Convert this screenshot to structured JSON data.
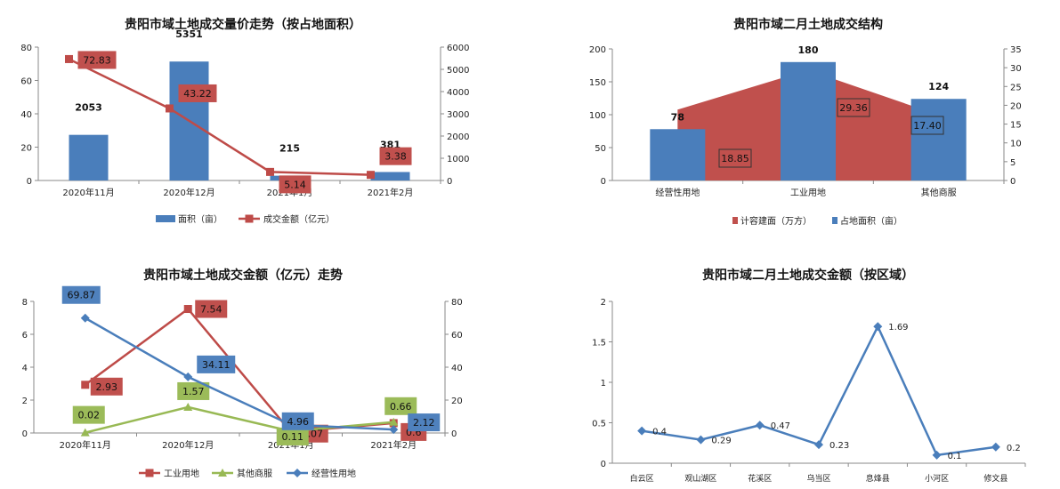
{
  "colors": {
    "blue": "#4a7ebb",
    "red": "#be4b48",
    "green": "#98b954",
    "area_red": "#c0504d",
    "box_blue": "#4f81bd",
    "box_red": "#c0504d",
    "box_green": "#9bbb59"
  },
  "chart_data": [
    {
      "type": "bar+line",
      "title": "贵阳市域土地成交量价走势（按占地面积）",
      "categories": [
        "2020年11月",
        "2020年12月",
        "2021年1月",
        "2021年2月"
      ],
      "series": [
        {
          "name": "面积（亩）",
          "kind": "bar",
          "axis": "right",
          "values": [
            2053,
            5351,
            215,
            381
          ]
        },
        {
          "name": "成交金额（亿元）",
          "kind": "line",
          "axis": "left",
          "values": [
            72.83,
            43.22,
            5.14,
            3.38
          ]
        }
      ],
      "y_left": {
        "ticks": [
          "0",
          "20",
          "40",
          "60",
          "80"
        ],
        "ylim": [
          0,
          80
        ]
      },
      "y_right": {
        "ticks": [
          "0",
          "1000",
          "2000",
          "3000",
          "4000",
          "5000",
          "6000"
        ],
        "ylim": [
          0,
          6000
        ]
      },
      "bar_labels": [
        "2053",
        "5351",
        "215",
        "381"
      ],
      "line_labels": [
        "72.83",
        "43.22",
        "5.14",
        "3.38"
      ],
      "legend": [
        "面积（亩）",
        "成交金额（亿元）"
      ]
    },
    {
      "type": "area+bar",
      "title": "贵阳市域二月土地成交结构",
      "categories": [
        "经营性用地",
        "工业用地",
        "其他商服"
      ],
      "series": [
        {
          "name": "计容建面（万方）",
          "kind": "area",
          "axis": "right",
          "values": [
            18.85,
            29.36,
            17.4
          ]
        },
        {
          "name": "占地面积（亩）",
          "kind": "bar",
          "axis": "left",
          "values": [
            78,
            180,
            124
          ]
        }
      ],
      "y_left": {
        "ticks": [
          "0",
          "50",
          "100",
          "150",
          "200"
        ],
        "ylim": [
          0,
          200
        ]
      },
      "y_right": {
        "ticks": [
          "0",
          "5",
          "10",
          "15",
          "20",
          "25",
          "30",
          "35"
        ],
        "ylim": [
          0,
          35
        ]
      },
      "bar_labels": [
        "78",
        "180",
        "124"
      ],
      "area_labels": [
        "18.85",
        "29.36",
        "17.40"
      ],
      "legend": [
        "计容建面（万方）",
        "占地面积（亩）"
      ]
    },
    {
      "type": "line",
      "title": "贵阳市域土地成交金额（亿元）走势",
      "categories": [
        "2020年11月",
        "2020年12月",
        "2021年1月",
        "2021年2月"
      ],
      "series": [
        {
          "name": "工业用地",
          "axis": "left",
          "values": [
            2.93,
            7.54,
            0.07,
            0.6
          ]
        },
        {
          "name": "其他商服",
          "axis": "left",
          "values": [
            0.02,
            1.57,
            0.11,
            0.66
          ]
        },
        {
          "name": "经营性用地",
          "axis": "right",
          "values": [
            69.87,
            34.11,
            4.96,
            2.12
          ]
        }
      ],
      "y_left": {
        "ticks": [
          "0",
          "2",
          "4",
          "6",
          "8"
        ],
        "ylim": [
          0,
          8
        ]
      },
      "y_right": {
        "ticks": [
          "0",
          "20",
          "40",
          "60",
          "80"
        ],
        "ylim": [
          0,
          80
        ]
      },
      "labels": {
        "工业用地": [
          "2.93",
          "7.54",
          "0.07",
          "0.6"
        ],
        "其他商服": [
          "0.02",
          "1.57",
          "0.11",
          "0.66"
        ],
        "经营性用地": [
          "69.87",
          "34.11",
          "4.96",
          "2.12"
        ]
      },
      "legend": [
        "工业用地",
        "其他商服",
        "经营性用地"
      ]
    },
    {
      "type": "line",
      "title": "贵阳市域二月土地成交金额（按区域）",
      "categories": [
        "白云区",
        "观山湖区",
        "花溪区",
        "乌当区",
        "息烽县",
        "小河区",
        "修文县"
      ],
      "series": [
        {
          "name": "",
          "values": [
            0.4,
            0.29,
            0.47,
            0.23,
            1.69,
            0.1,
            0.2
          ]
        }
      ],
      "y_left": {
        "ticks": [
          "0",
          "0.5",
          "1",
          "1.5",
          "2"
        ],
        "ylim": [
          0,
          2
        ]
      },
      "labels": [
        "0.4",
        "0.29",
        "0.47",
        "0.23",
        "1.69",
        "0.1",
        "0.2"
      ]
    }
  ]
}
